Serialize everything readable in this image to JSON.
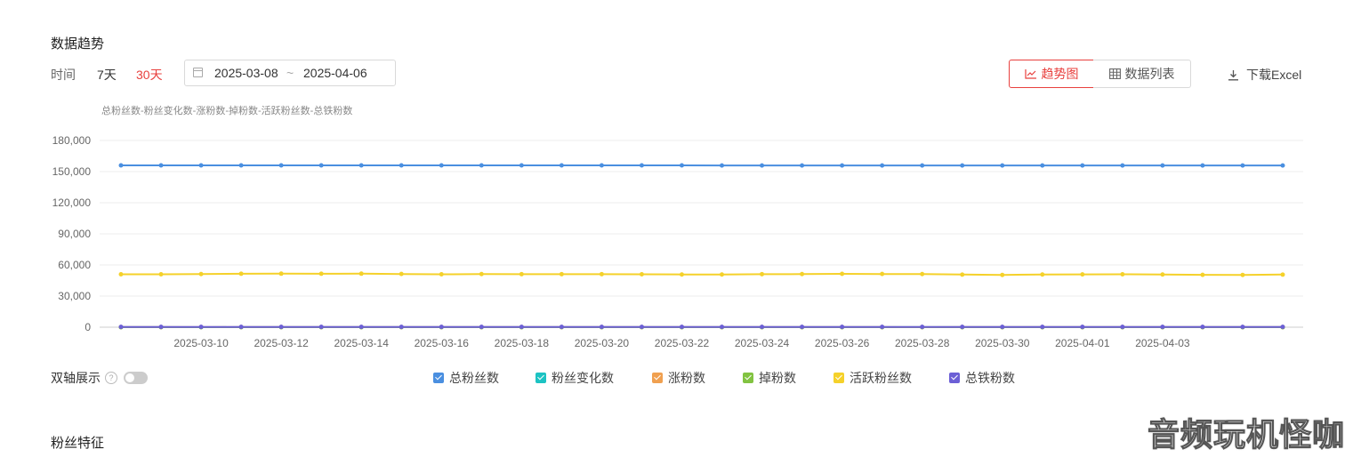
{
  "section_title": "数据趋势",
  "time_filter": {
    "label": "时间",
    "options": [
      "7天",
      "30天"
    ],
    "active": "30天",
    "start": "2025-03-08",
    "separator": "~",
    "end": "2025-04-06"
  },
  "view_toggle": {
    "trend": "趋势图",
    "table": "数据列表",
    "active": "trend"
  },
  "download_label": "下载Excel",
  "dual_axis": {
    "label": "双轴展示",
    "help_icon": "question-circle-icon",
    "on": false
  },
  "next_section_title": "粉丝特征",
  "watermark": "音频玩机怪咖",
  "accent_color": "#e8403e",
  "chart_data": {
    "type": "line",
    "title": "总粉丝数-粉丝变化数-涨粉数-掉粉数-活跃粉丝数-总铁粉数",
    "ylim": [
      0,
      180000
    ],
    "yticks": [
      0,
      30000,
      60000,
      90000,
      120000,
      150000,
      180000
    ],
    "ytick_labels": [
      "0",
      "30,000",
      "60,000",
      "90,000",
      "120,000",
      "150,000",
      "180,000"
    ],
    "x": [
      "2025-03-08",
      "2025-03-09",
      "2025-03-10",
      "2025-03-11",
      "2025-03-12",
      "2025-03-13",
      "2025-03-14",
      "2025-03-15",
      "2025-03-16",
      "2025-03-17",
      "2025-03-18",
      "2025-03-19",
      "2025-03-20",
      "2025-03-21",
      "2025-03-22",
      "2025-03-23",
      "2025-03-24",
      "2025-03-25",
      "2025-03-26",
      "2025-03-27",
      "2025-03-28",
      "2025-03-29",
      "2025-03-30",
      "2025-03-31",
      "2025-04-01",
      "2025-04-02",
      "2025-04-03",
      "2025-04-04",
      "2025-04-05",
      "2025-04-06"
    ],
    "xtick_labels": [
      "2025-03-10",
      "2025-03-12",
      "2025-03-14",
      "2025-03-16",
      "2025-03-18",
      "2025-03-20",
      "2025-03-22",
      "2025-03-24",
      "2025-03-26",
      "2025-03-28",
      "2025-03-30",
      "2025-04-01",
      "2025-04-03"
    ],
    "grid": true,
    "legend_position": "bottom",
    "series": [
      {
        "name": "总粉丝数",
        "color": "#4a8fe0",
        "checked": true,
        "values": [
          156000,
          156000,
          156000,
          156000,
          156000,
          156000,
          156000,
          156000,
          156000,
          156000,
          156000,
          156000,
          156000,
          156000,
          156000,
          155900,
          155900,
          155900,
          155900,
          155900,
          155900,
          155900,
          155900,
          155900,
          155900,
          155900,
          155900,
          155900,
          155900,
          155900
        ]
      },
      {
        "name": "粉丝变化数",
        "color": "#1cc3c3",
        "checked": true,
        "values": [
          10,
          -20,
          30,
          -10,
          0,
          -20,
          10,
          -30,
          0,
          -10,
          20,
          -20,
          0,
          -30,
          10,
          -10,
          0,
          -20,
          0,
          -10,
          -30,
          0,
          -20,
          10,
          -20,
          0,
          -10,
          -20,
          0,
          -10
        ]
      },
      {
        "name": "涨粉数",
        "color": "#f0a050",
        "checked": true,
        "values": [
          60,
          50,
          70,
          55,
          60,
          45,
          60,
          50,
          55,
          50,
          65,
          50,
          55,
          45,
          60,
          50,
          55,
          45,
          60,
          50,
          40,
          55,
          45,
          60,
          45,
          55,
          50,
          45,
          55,
          50
        ]
      },
      {
        "name": "掉粉数",
        "color": "#82c341",
        "checked": true,
        "values": [
          50,
          70,
          40,
          65,
          60,
          65,
          50,
          80,
          55,
          60,
          45,
          70,
          55,
          75,
          50,
          60,
          55,
          65,
          60,
          60,
          70,
          55,
          65,
          50,
          65,
          55,
          60,
          65,
          55,
          60
        ]
      },
      {
        "name": "活跃粉丝数",
        "color": "#f5d12a",
        "checked": true,
        "values": [
          51000,
          51000,
          51200,
          51500,
          51600,
          51500,
          51600,
          51300,
          51000,
          51200,
          51100,
          51100,
          51100,
          51000,
          50800,
          50800,
          51100,
          51200,
          51400,
          51300,
          51200,
          50700,
          50400,
          50800,
          50900,
          51000,
          50800,
          50500,
          50400,
          50700
        ]
      },
      {
        "name": "总铁粉数",
        "color": "#6c5fd6",
        "checked": true,
        "values": [
          300,
          300,
          300,
          300,
          300,
          300,
          300,
          300,
          300,
          300,
          300,
          300,
          300,
          300,
          300,
          300,
          300,
          300,
          300,
          300,
          300,
          300,
          300,
          300,
          300,
          300,
          300,
          300,
          300,
          300
        ]
      }
    ]
  }
}
